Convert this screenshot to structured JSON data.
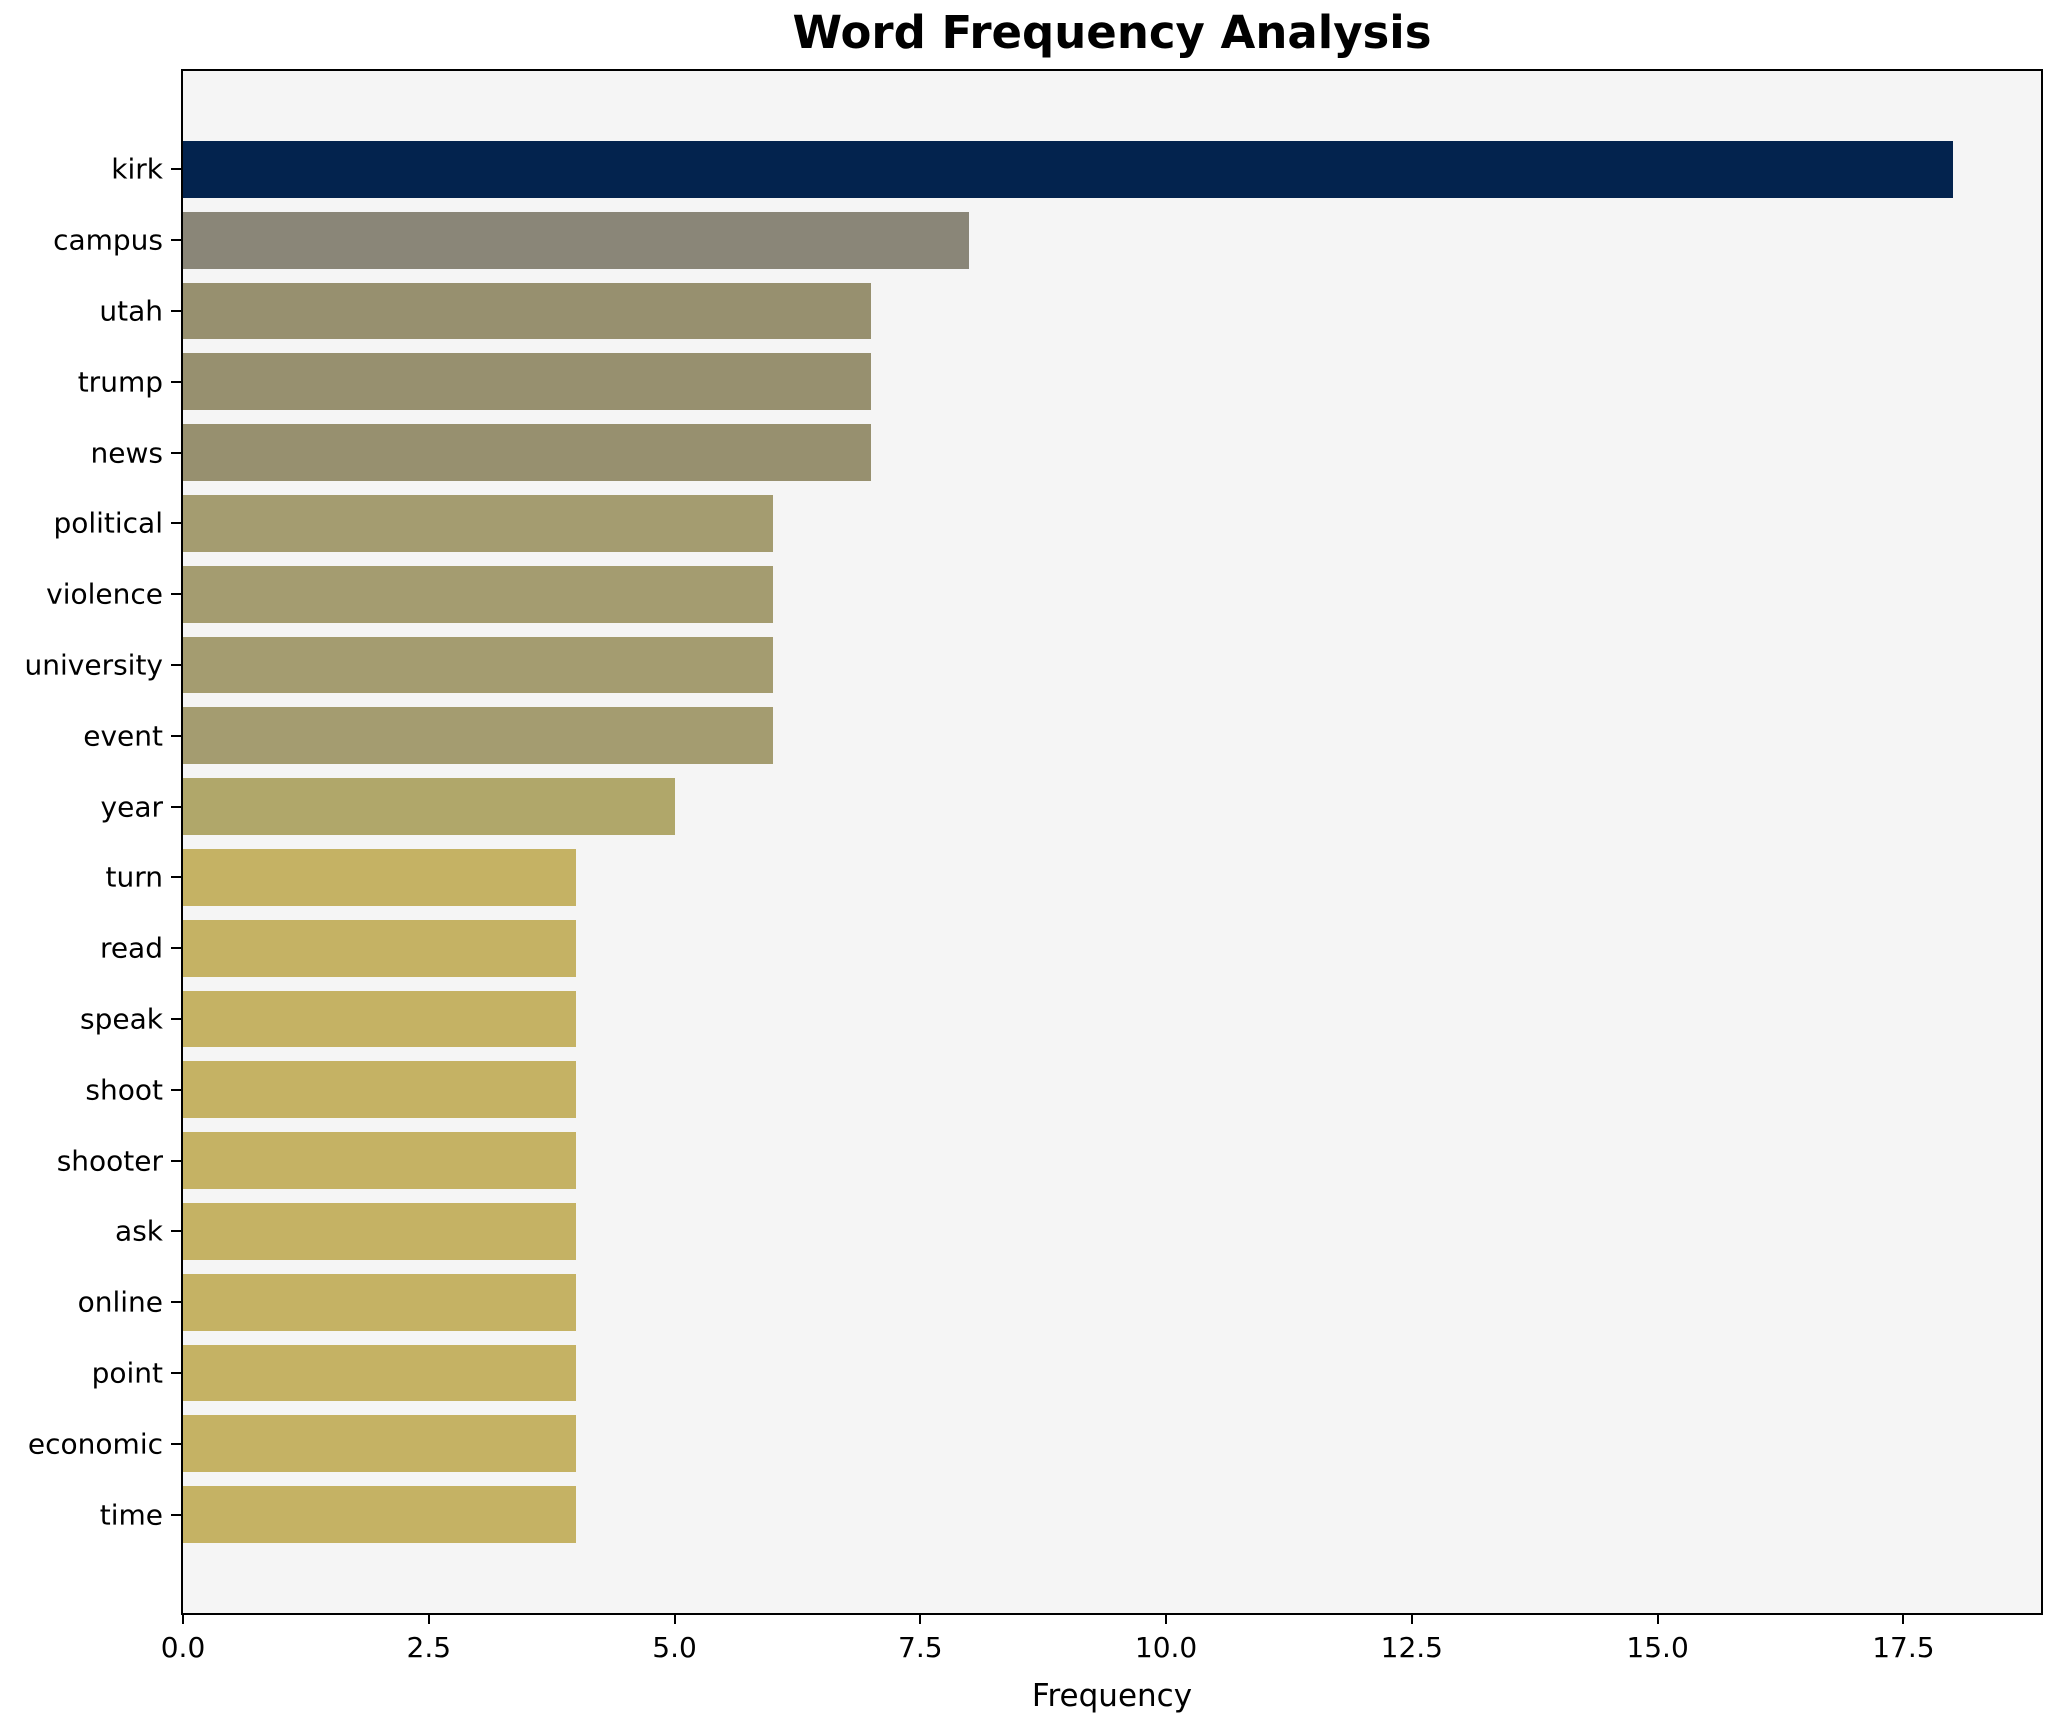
{
  "chart_data": {
    "type": "bar",
    "orientation": "horizontal",
    "title": "Word Frequency Analysis",
    "xlabel": "Frequency",
    "ylabel": "",
    "categories": [
      "kirk",
      "campus",
      "utah",
      "trump",
      "news",
      "political",
      "violence",
      "university",
      "event",
      "year",
      "turn",
      "read",
      "speak",
      "shoot",
      "shooter",
      "ask",
      "online",
      "point",
      "economic",
      "time"
    ],
    "values": [
      18,
      8,
      7,
      7,
      7,
      6,
      6,
      6,
      6,
      5,
      4,
      4,
      4,
      4,
      4,
      4,
      4,
      4,
      4,
      4
    ],
    "bar_colors": [
      "#03234e",
      "#8a8678",
      "#97906f",
      "#97906f",
      "#97906f",
      "#a49c70",
      "#a49c70",
      "#a49c70",
      "#a49c70",
      "#b0a76a",
      "#c5b264",
      "#c5b264",
      "#c5b264",
      "#c5b264",
      "#c5b264",
      "#c5b264",
      "#c5b264",
      "#c5b264",
      "#c5b264",
      "#c5b264"
    ],
    "xlim": [
      0,
      18.9
    ],
    "xticks": [
      0,
      2.5,
      5,
      7.5,
      10,
      12.5,
      15,
      17.5
    ],
    "xtick_labels": [
      "0.0",
      "2.5",
      "5.0",
      "7.5",
      "10.0",
      "12.5",
      "15.0",
      "17.5"
    ],
    "grid": false,
    "legend": null,
    "plot_background": "#f5f5f5",
    "figure_background": "#ffffff",
    "spine_color": "#000000",
    "text_color": "#000000"
  }
}
